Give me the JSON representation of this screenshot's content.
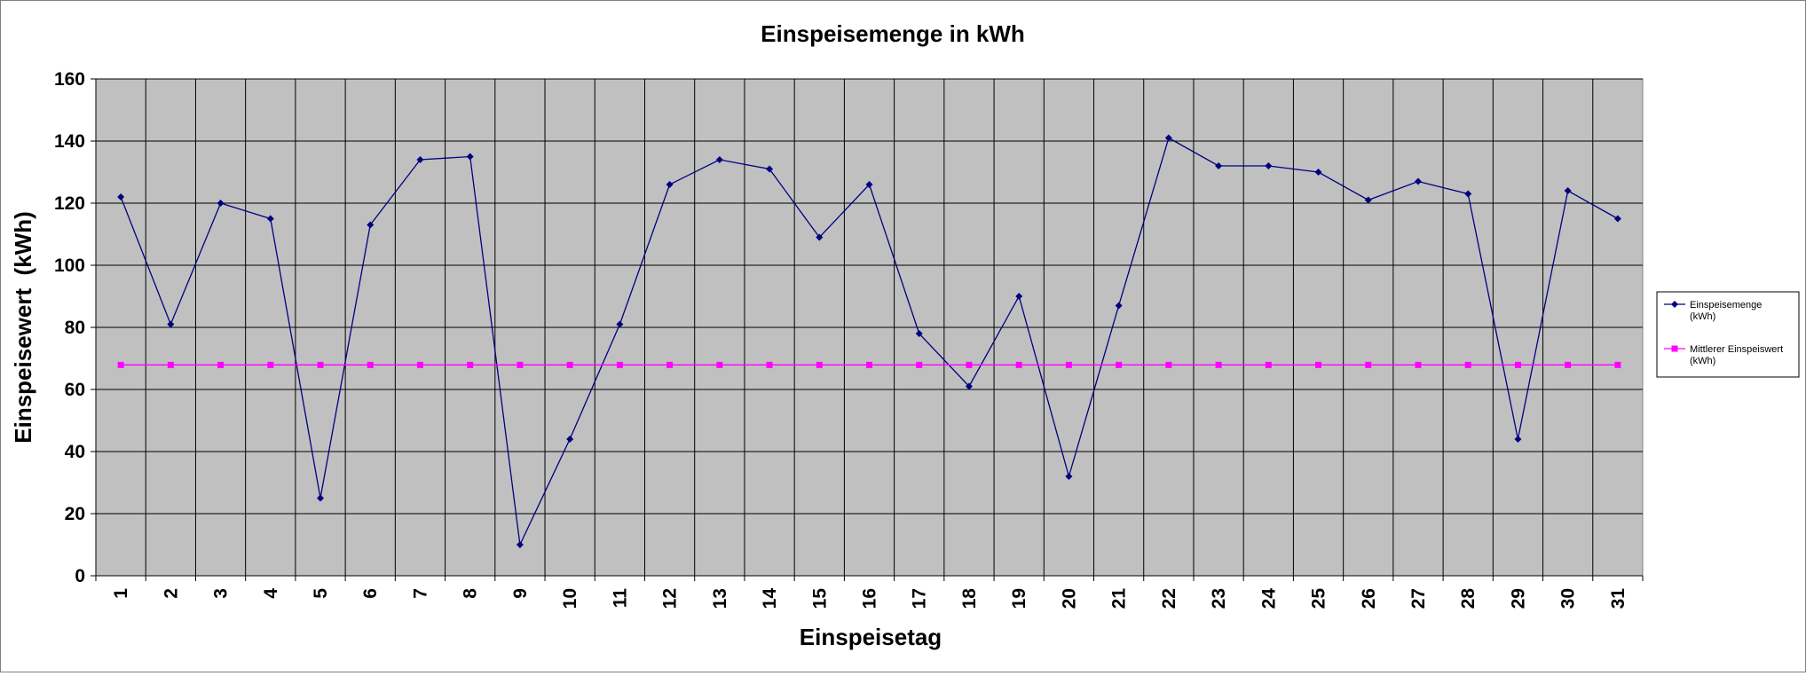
{
  "chart_data": {
    "type": "line",
    "title": "Einspeisemenge in kWh",
    "xlabel": "Einspeisetag",
    "ylabel": "Einspeisewert  (kWh)",
    "ylim": [
      0,
      160
    ],
    "yticks": [
      0,
      20,
      40,
      60,
      80,
      100,
      120,
      140,
      160
    ],
    "grid": true,
    "legend_position": "right",
    "colors": {
      "plot_background": "#c0c0c0",
      "grid": "#000000"
    },
    "categories": [
      "1",
      "2",
      "3",
      "4",
      "5",
      "6",
      "7",
      "8",
      "9",
      "10",
      "11",
      "12",
      "13",
      "14",
      "15",
      "16",
      "17",
      "18",
      "19",
      "20",
      "21",
      "22",
      "23",
      "24",
      "25",
      "26",
      "27",
      "28",
      "29",
      "30",
      "31"
    ],
    "series": [
      {
        "name_lines": [
          "Einspeisemenge",
          "(kWh)"
        ],
        "color": "#000080",
        "marker": "diamond",
        "values": [
          122,
          81,
          120,
          115,
          25,
          113,
          134,
          135,
          10,
          44,
          81,
          126,
          134,
          131,
          109,
          126,
          78,
          61,
          90,
          32,
          87,
          141,
          132,
          132,
          130,
          121,
          127,
          123,
          44,
          124,
          115
        ]
      },
      {
        "name_lines": [
          "Mittlerer Einspeiswert",
          "(kWh)"
        ],
        "color": "#ff00ff",
        "marker": "square",
        "values": [
          67.9,
          67.9,
          67.9,
          67.9,
          67.9,
          67.9,
          67.9,
          67.9,
          67.9,
          67.9,
          67.9,
          67.9,
          67.9,
          67.9,
          67.9,
          67.9,
          67.9,
          67.9,
          67.9,
          67.9,
          67.9,
          67.9,
          67.9,
          67.9,
          67.9,
          67.9,
          67.9,
          67.9,
          67.9,
          67.9,
          67.9
        ]
      }
    ]
  }
}
